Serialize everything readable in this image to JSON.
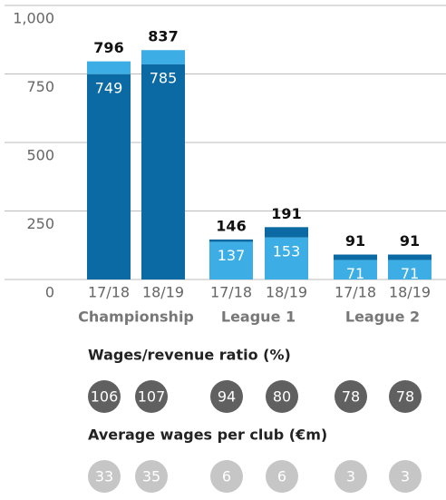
{
  "chart_data": {
    "type": "bar",
    "categories": [
      "17/18",
      "18/19",
      "17/18",
      "18/19",
      "17/18",
      "18/19"
    ],
    "groups": [
      "Championship",
      "League 1",
      "League 2"
    ],
    "values": [
      749,
      785,
      137,
      153,
      71,
      71
    ],
    "totals": [
      796,
      837,
      146,
      191,
      91,
      91
    ],
    "lower_colors": [
      "#0b6aa3",
      "#0b6aa3",
      "#3daee5",
      "#3daee5",
      "#3daee5",
      "#3daee5"
    ],
    "upper_colors": [
      "#3daee5",
      "#3daee5",
      "#0b6aa3",
      "#0b6aa3",
      "#0b6aa3",
      "#0b6aa3"
    ],
    "ylim": [
      0,
      1000
    ],
    "yticks": [
      0,
      250,
      500,
      750,
      {
        "value": 1000,
        "label": "1,000"
      }
    ],
    "grid": true,
    "rows": [
      {
        "title": "Wages/revenue ratio (%)",
        "values": [
          106,
          107,
          94,
          80,
          78,
          78
        ],
        "color": "#606060"
      },
      {
        "title": "Average wages per club (€m)",
        "values": [
          33,
          35,
          6,
          6,
          3,
          3
        ],
        "color": "#c6c6c6"
      }
    ]
  }
}
